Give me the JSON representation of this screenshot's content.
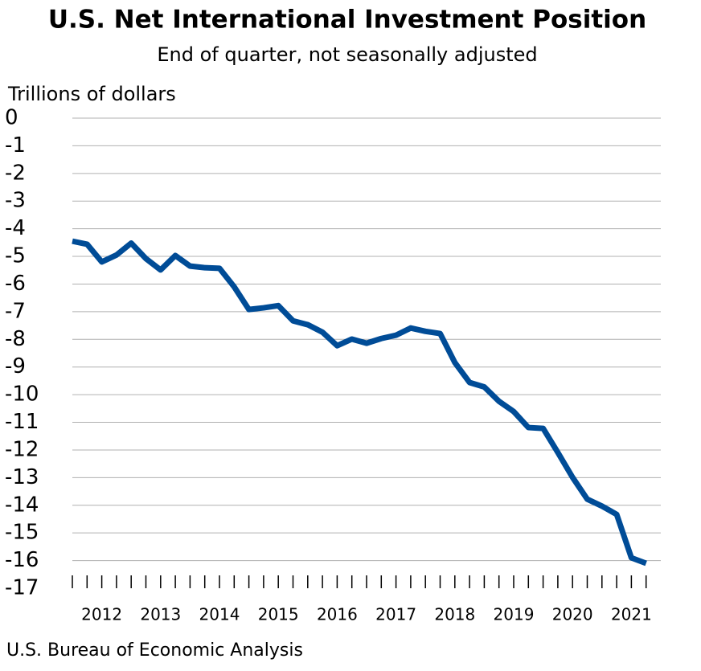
{
  "chart_data": {
    "type": "line",
    "title": "U.S. Net International Investment Position",
    "subtitle": "End of quarter, not seasonally adjusted",
    "y_label": "Trillions of dollars",
    "source": "U.S. Bureau of Economic Analysis",
    "x": [
      2012.0,
      2012.25,
      2012.5,
      2012.75,
      2013.0,
      2013.25,
      2013.5,
      2013.75,
      2014.0,
      2014.25,
      2014.5,
      2014.75,
      2015.0,
      2015.25,
      2015.5,
      2015.75,
      2016.0,
      2016.25,
      2016.5,
      2016.75,
      2017.0,
      2017.25,
      2017.5,
      2017.75,
      2018.0,
      2018.25,
      2018.5,
      2018.75,
      2019.0,
      2019.25,
      2019.5,
      2019.75,
      2020.0,
      2020.25,
      2020.5,
      2020.75,
      2021.0,
      2021.25,
      2021.5,
      2021.75
    ],
    "series": [
      {
        "name": "Net international investment position",
        "color": "#004c97",
        "values": [
          -4.45,
          -4.56,
          -5.2,
          -4.95,
          -4.52,
          -5.08,
          -5.49,
          -4.97,
          -5.35,
          -5.41,
          -5.43,
          -6.1,
          -6.92,
          -6.86,
          -6.78,
          -7.33,
          -7.47,
          -7.74,
          -8.23,
          -7.99,
          -8.14,
          -7.97,
          -7.85,
          -7.59,
          -7.71,
          -7.79,
          -8.84,
          -9.56,
          -9.72,
          -10.24,
          -10.61,
          -11.19,
          -11.22,
          -12.09,
          -12.99,
          -13.78,
          -14.03,
          -14.33,
          -15.9,
          -16.1
        ]
      }
    ],
    "xlim": [
      2012,
      2022
    ],
    "xticks": [
      {
        "value": 2012.5,
        "label": "2012"
      },
      {
        "value": 2013.5,
        "label": "2013"
      },
      {
        "value": 2014.5,
        "label": "2014"
      },
      {
        "value": 2015.5,
        "label": "2015"
      },
      {
        "value": 2016.5,
        "label": "2016"
      },
      {
        "value": 2017.5,
        "label": "2017"
      },
      {
        "value": 2018.5,
        "label": "2018"
      },
      {
        "value": 2019.5,
        "label": "2019"
      },
      {
        "value": 2020.5,
        "label": "2020"
      },
      {
        "value": 2021.5,
        "label": "2021"
      }
    ],
    "ylim": [
      -17,
      0
    ],
    "yticks": [
      0,
      -1,
      -2,
      -3,
      -4,
      -5,
      -6,
      -7,
      -8,
      -9,
      -10,
      -11,
      -12,
      -13,
      -14,
      -15,
      -16,
      -17
    ],
    "grid": true
  }
}
